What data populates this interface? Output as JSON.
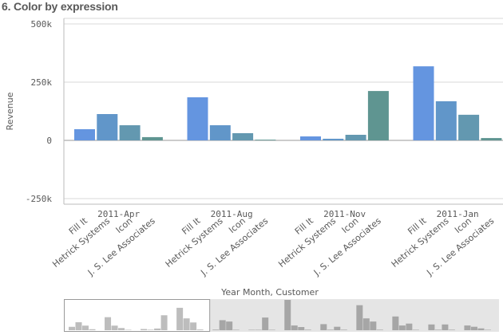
{
  "title": "6. Color by expression",
  "chart_data": {
    "type": "bar",
    "title": "6. Color by expression",
    "ylabel": "Revenue",
    "xlabel": "Year Month, Customer",
    "ylim": [
      -250000,
      500000
    ],
    "yticks": [
      {
        "v": 500000,
        "label": "500k"
      },
      {
        "v": 250000,
        "label": "250k"
      },
      {
        "v": 0,
        "label": "0"
      },
      {
        "v": -250000,
        "label": "-250k"
      }
    ],
    "grid": true,
    "groups": [
      "2011-Apr",
      "2011-Aug",
      "2011-Nov",
      "2011-Jan"
    ],
    "categories": [
      "Fill It",
      "Hetrick Systems",
      "Icon",
      "J. S. Lee Associates"
    ],
    "colors": [
      "#6495e0",
      "#6196c9",
      "#6398b0",
      "#5f9591"
    ],
    "values": [
      [
        48000,
        113000,
        65000,
        14000
      ],
      [
        185000,
        65000,
        31000,
        3000
      ],
      [
        17000,
        7000,
        24000,
        212000
      ],
      [
        318000,
        168000,
        110000,
        10000
      ]
    ],
    "overview": {
      "values": [
        [
          48000,
          113000,
          65000,
          14000
        ],
        [
          185000,
          65000,
          31000,
          3000
        ],
        [
          17000,
          7000,
          24000,
          212000
        ],
        [
          318000,
          168000,
          110000,
          10000
        ],
        [
          8000,
          142000,
          123000,
          0
        ],
        [
          4000,
          4000,
          180000,
          0
        ],
        [
          430000,
          67000,
          45000,
          7000
        ],
        [
          86000,
          7000,
          49000,
          7000
        ],
        [
          355000,
          168000,
          123000,
          7000
        ],
        [
          195000,
          67000,
          94000,
          0
        ],
        [
          82000,
          7000,
          82000,
          7000
        ],
        [
          67000,
          49000,
          26000,
          0
        ]
      ],
      "visible_groups": 4
    }
  }
}
